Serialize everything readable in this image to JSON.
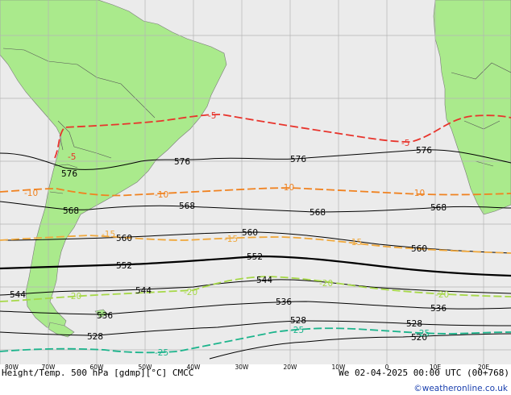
{
  "map": {
    "title": "Height/Temp. 500 hPa [gdmp][°C] CMCC",
    "valid_time": "We 02-04-2025 00:00 UTC (00+768)",
    "credit": "©weatheronline.co.uk",
    "colors": {
      "ocean": "#ebebeb",
      "land": "#aaea8c",
      "grid": "#b4b4b4",
      "height": "#000000",
      "temp_minus5": "#e8342c",
      "temp_minus10": "#f08220",
      "temp_minus15": "#f0a83c",
      "temp_minus20": "#a6d848",
      "temp_minus25": "#1cb48c"
    },
    "longitude_ticks": [
      "80W",
      "70W",
      "60W",
      "50W",
      "40W",
      "30W",
      "20W",
      "10W",
      "0",
      "10E",
      "20E"
    ],
    "height_labels": [
      "576",
      "576",
      "576",
      "576",
      "568",
      "568",
      "568",
      "568",
      "560",
      "560",
      "560",
      "552",
      "552",
      "544",
      "544",
      "544",
      "536",
      "536",
      "536",
      "528",
      "528",
      "528",
      "520"
    ],
    "temp_labels": {
      "minus5": [
        "-5",
        "-5",
        "-5"
      ],
      "minus10": [
        "-10",
        "-10",
        "-10",
        "-10"
      ],
      "minus15": [
        "-15",
        "-15",
        "-15"
      ],
      "minus20": [
        "-20",
        "-20",
        "-20",
        "-20"
      ],
      "minus25": [
        "-25",
        "-25",
        "-25"
      ]
    }
  }
}
